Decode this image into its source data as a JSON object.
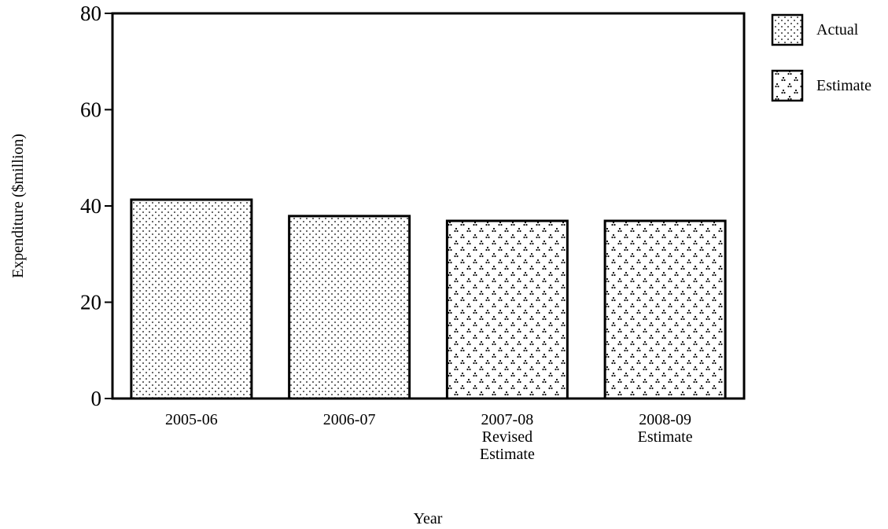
{
  "chart_data": {
    "type": "bar",
    "title": "",
    "xlabel": "Year",
    "ylabel": "Expenditure ($million)",
    "ylim": [
      0,
      80
    ],
    "yticks": [
      0,
      20,
      40,
      60,
      80
    ],
    "grid": false,
    "legend_position": "top-right",
    "categories": [
      {
        "lines": [
          "2005-06"
        ]
      },
      {
        "lines": [
          "2006-07"
        ]
      },
      {
        "lines": [
          "2007-08",
          "Revised",
          "Estimate"
        ]
      },
      {
        "lines": [
          "2008-09",
          "Estimate"
        ]
      }
    ],
    "values": [
      41.3,
      37.9,
      36.9,
      36.9
    ],
    "bar_series": [
      "actual",
      "actual",
      "estimate",
      "estimate"
    ],
    "legend": [
      {
        "key": "actual",
        "label": "Actual"
      },
      {
        "key": "estimate",
        "label": "Estimate"
      }
    ]
  }
}
